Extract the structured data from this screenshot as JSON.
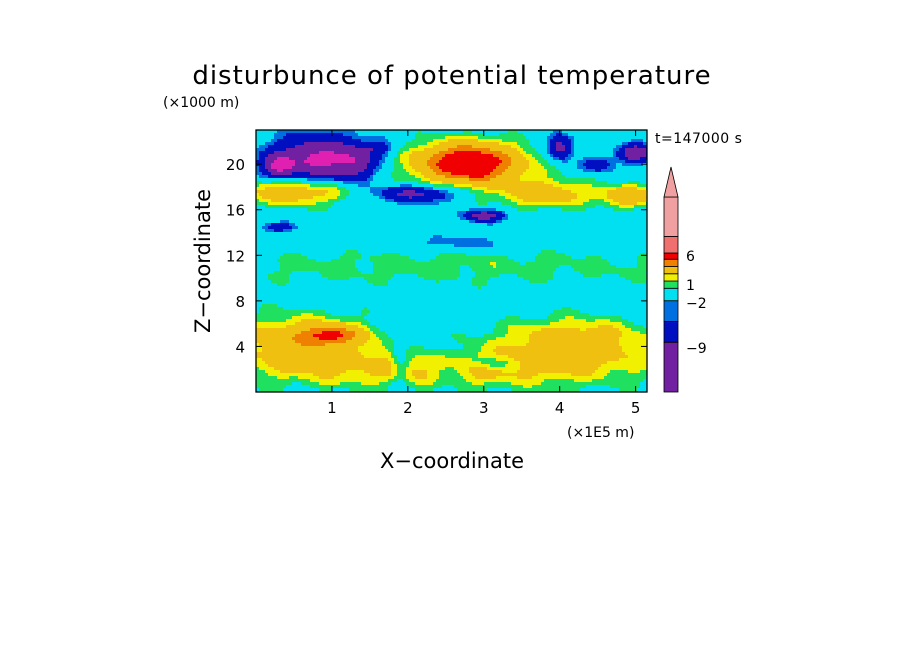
{
  "chart_data": {
    "type": "heatmap",
    "title": "disturbunce of potential temperature",
    "time_label": "t=147000 s",
    "xlabel": "X−coordinate",
    "ylabel": "Z−coordinate",
    "x_unit": "(×1E5 m)",
    "y_unit": "(×1000 m)",
    "xlim": [
      0,
      5.15
    ],
    "ylim": [
      0,
      23
    ],
    "x_ticks": [
      1,
      2,
      3,
      4,
      5
    ],
    "x_tick_labels": [
      "1",
      "2",
      "3",
      "4",
      "5"
    ],
    "y_ticks": [
      4,
      8,
      12,
      16,
      20
    ],
    "y_tick_labels": [
      "4",
      "8",
      "12",
      "16",
      "20"
    ],
    "colorbar": {
      "labels": [
        "6",
        "1",
        "−2",
        "−9"
      ],
      "levels": [
        -9,
        -5,
        -2,
        -1,
        1,
        2,
        3,
        6,
        8
      ],
      "colors": [
        "#e020b0",
        "#7020a0",
        "#0010c0",
        "#0070e0",
        "#00e0f0",
        "#20e060",
        "#f0f000",
        "#f0c010",
        "#f08000",
        "#f00000",
        "#f07070",
        "#f0a0a0"
      ],
      "extend_top": true
    },
    "blobs": [
      {
        "cx": 2.5,
        "cy": 2.0,
        "rx": 2.8,
        "ry": 1.8,
        "v": 3.5
      },
      {
        "cx": 0.6,
        "cy": 4.6,
        "rx": 0.9,
        "ry": 2.2,
        "v": 4.5
      },
      {
        "cx": 1.0,
        "cy": 5.0,
        "rx": 0.4,
        "ry": 0.8,
        "v": 5.5
      },
      {
        "cx": 4.2,
        "cy": 4.5,
        "rx": 1.0,
        "ry": 2.0,
        "v": 4.5
      },
      {
        "cx": 2.6,
        "cy": 11.0,
        "rx": 4.5,
        "ry": 1.6,
        "v": 1.5
      },
      {
        "cx": 2.6,
        "cy": 13.4,
        "rx": 3.8,
        "ry": 0.9,
        "v": -0.5
      },
      {
        "cx": 2.7,
        "cy": 13.0,
        "rx": 0.6,
        "ry": 0.5,
        "v": -1.5
      },
      {
        "cx": 0.5,
        "cy": 17.6,
        "rx": 0.7,
        "ry": 1.2,
        "v": 5.0
      },
      {
        "cx": 3.8,
        "cy": 17.4,
        "rx": 0.6,
        "ry": 1.2,
        "v": 4.8
      },
      {
        "cx": 4.9,
        "cy": 17.2,
        "rx": 0.35,
        "ry": 1.0,
        "v": 5.0
      },
      {
        "cx": 0.85,
        "cy": 20.5,
        "rx": 0.6,
        "ry": 1.8,
        "v": -10
      },
      {
        "cx": 0.3,
        "cy": 19.8,
        "rx": 0.2,
        "ry": 0.9,
        "v": -8
      },
      {
        "cx": 1.3,
        "cy": 20.0,
        "rx": 0.2,
        "ry": 1.3,
        "v": -4
      },
      {
        "cx": 1.6,
        "cy": 21.4,
        "rx": 0.2,
        "ry": 0.6,
        "v": -3
      },
      {
        "cx": 2.8,
        "cy": 20.1,
        "rx": 0.7,
        "ry": 1.8,
        "v": 11
      },
      {
        "cx": 2.9,
        "cy": 19.5,
        "rx": 0.15,
        "ry": 0.6,
        "v": 3
      },
      {
        "cx": 2.1,
        "cy": 17.4,
        "rx": 0.5,
        "ry": 0.7,
        "v": -6
      },
      {
        "cx": 3.0,
        "cy": 15.5,
        "rx": 0.25,
        "ry": 0.5,
        "v": -7
      },
      {
        "cx": 4.0,
        "cy": 21.5,
        "rx": 0.15,
        "ry": 1.0,
        "v": -7
      },
      {
        "cx": 4.5,
        "cy": 20.0,
        "rx": 0.2,
        "ry": 0.7,
        "v": -4
      },
      {
        "cx": 5.0,
        "cy": 21.0,
        "rx": 0.2,
        "ry": 0.8,
        "v": -8
      },
      {
        "cx": 0.3,
        "cy": 14.5,
        "rx": 0.2,
        "ry": 0.4,
        "v": -4
      },
      {
        "cx": 1.9,
        "cy": 3.0,
        "rx": 0.12,
        "ry": 3.5,
        "v": -2
      },
      {
        "cx": 2.5,
        "cy": 2.0,
        "rx": 0.25,
        "ry": 2.0,
        "v": -1.5
      },
      {
        "cx": 3.1,
        "cy": 2.5,
        "rx": 0.3,
        "ry": 0.6,
        "v": -2
      }
    ]
  }
}
